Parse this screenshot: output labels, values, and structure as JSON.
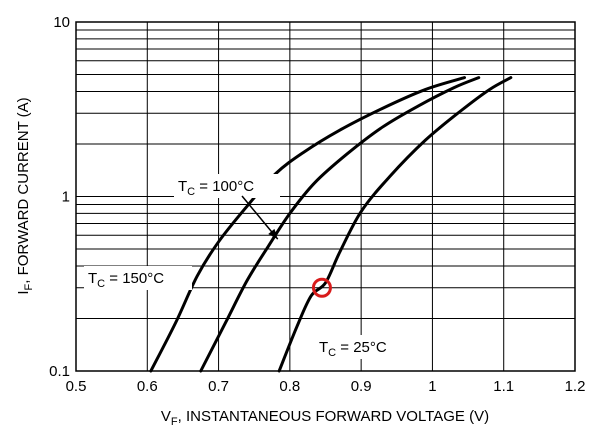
{
  "chart_data": {
    "type": "line",
    "title": "",
    "xlabel": "V",
    "xlabel_sub": "F",
    "xlabel_rest": ", INSTANTANEOUS FORWARD VOLTAGE (V)",
    "ylabel": "I",
    "ylabel_sub": "F",
    "ylabel_rest": ", FORWARD CURRENT (A)",
    "xlim": [
      0.5,
      1.2
    ],
    "ylim": [
      0.1,
      10
    ],
    "yscale": "log",
    "grid": true,
    "x_ticks": [
      "0.5",
      "0.6",
      "0.7",
      "0.8",
      "0.9",
      "1",
      "1.1",
      "1.2"
    ],
    "y_ticks": [
      "0.1",
      "1",
      "10"
    ],
    "series": [
      {
        "name": "TC = 150°C",
        "label_main": "T",
        "label_sub": "C",
        "label_rest": " = 150°C",
        "points": [
          [
            0.605,
            0.1
          ],
          [
            0.64,
            0.19
          ],
          [
            0.67,
            0.35
          ],
          [
            0.7,
            0.55
          ],
          [
            0.74,
            0.88
          ],
          [
            0.78,
            1.35
          ],
          [
            0.82,
            1.8
          ],
          [
            0.87,
            2.4
          ],
          [
            0.93,
            3.2
          ],
          [
            0.99,
            4.1
          ],
          [
            1.045,
            4.8
          ]
        ]
      },
      {
        "name": "TC = 100°C",
        "label_main": "T",
        "label_sub": "C",
        "label_rest": " = 100°C",
        "points": [
          [
            0.675,
            0.1
          ],
          [
            0.71,
            0.19
          ],
          [
            0.74,
            0.33
          ],
          [
            0.77,
            0.52
          ],
          [
            0.8,
            0.8
          ],
          [
            0.835,
            1.2
          ],
          [
            0.88,
            1.75
          ],
          [
            0.93,
            2.5
          ],
          [
            0.98,
            3.3
          ],
          [
            1.03,
            4.2
          ],
          [
            1.065,
            4.8
          ]
        ]
      },
      {
        "name": "TC = 25°C",
        "label_main": "T",
        "label_sub": "C",
        "label_rest": " = 25°C",
        "points": [
          [
            0.785,
            0.1
          ],
          [
            0.81,
            0.18
          ],
          [
            0.83,
            0.27
          ],
          [
            0.85,
            0.32
          ],
          [
            0.87,
            0.48
          ],
          [
            0.9,
            0.82
          ],
          [
            0.94,
            1.3
          ],
          [
            0.99,
            2.1
          ],
          [
            1.04,
            3.1
          ],
          [
            1.08,
            4.1
          ],
          [
            1.11,
            4.8
          ]
        ]
      }
    ],
    "marker": {
      "type": "circle",
      "x": 0.845,
      "y": 0.3,
      "color": "#d81b1b"
    }
  }
}
